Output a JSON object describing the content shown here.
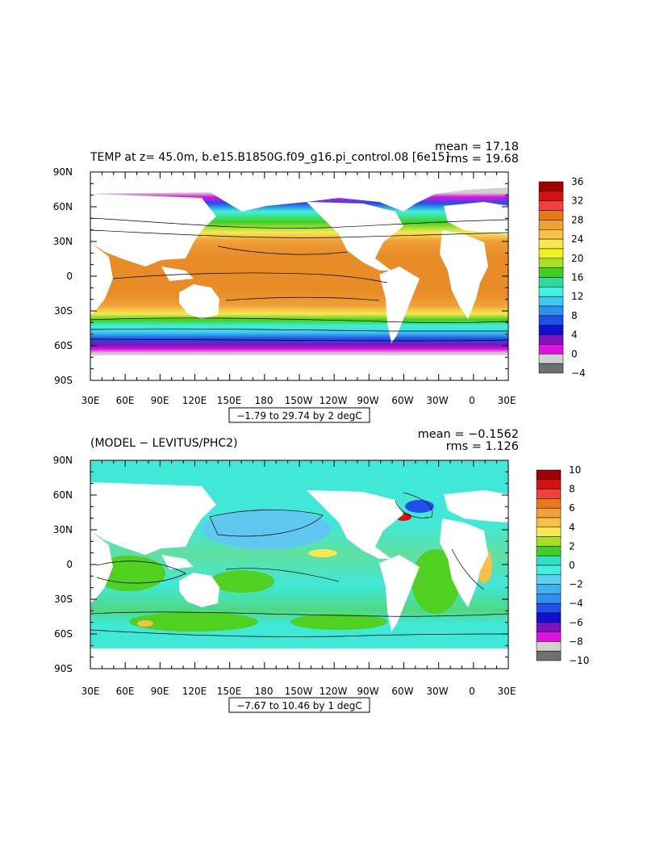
{
  "panels": [
    {
      "title": "TEMP at z=  45.0m, b.e15.B1850G.f09_g16.pi_control.08  [6e15]",
      "mean": "mean = 17.18",
      "rms": "rms = 19.68",
      "range_label": "−1.79 to 29.74 by 2 degC",
      "lat_labels": [
        "90N",
        "60N",
        "30N",
        "0",
        "30S",
        "60S",
        "90S"
      ],
      "lon_labels": [
        "30E",
        "60E",
        "90E",
        "120E",
        "150E",
        "180",
        "150W",
        "120W",
        "90W",
        "60W",
        "30W",
        "0",
        "30E"
      ],
      "colorbar": {
        "labels": [
          "36",
          "32",
          "28",
          "24",
          "20",
          "16",
          "12",
          "8",
          "4",
          "0",
          "−4"
        ],
        "colors": [
          "#a00000",
          "#d81010",
          "#f04040",
          "#e87818",
          "#f0a038",
          "#f8c048",
          "#f8e850",
          "#f0f020",
          "#a8e020",
          "#40d020",
          "#30d8a0",
          "#40f0e0",
          "#40c8f0",
          "#3090f0",
          "#2050e8",
          "#1010d0",
          "#8010c0",
          "#e010e0",
          "#d0d0d0",
          "#707070"
        ]
      }
    },
    {
      "title": "(MODEL − LEVITUS/PHC2)",
      "mean": "mean = −0.1562",
      "rms": "rms = 1.126",
      "range_label": "−7.67 to 10.46 by 1 degC",
      "lat_labels": [
        "90N",
        "60N",
        "30N",
        "0",
        "30S",
        "60S",
        "90S"
      ],
      "lon_labels": [
        "30E",
        "60E",
        "90E",
        "120E",
        "150E",
        "180",
        "150W",
        "120W",
        "90W",
        "60W",
        "30W",
        "0",
        "30E"
      ],
      "colorbar": {
        "labels": [
          "10",
          "8",
          "6",
          "4",
          "2",
          "0",
          "−2",
          "−4",
          "−6",
          "−8",
          "−10"
        ],
        "colors": [
          "#a00000",
          "#d81010",
          "#f04040",
          "#e87818",
          "#f0a038",
          "#f8c048",
          "#f8e850",
          "#a8e020",
          "#40d020",
          "#30e0c0",
          "#40f0e0",
          "#60d0f0",
          "#40b0f0",
          "#3090f0",
          "#2050e8",
          "#1010d0",
          "#8010c0",
          "#e010e0",
          "#d0d0d0",
          "#707070"
        ]
      }
    }
  ],
  "colors": {
    "land": "#ffffff",
    "ice": "#d0d0d0",
    "frame": "#000000"
  }
}
